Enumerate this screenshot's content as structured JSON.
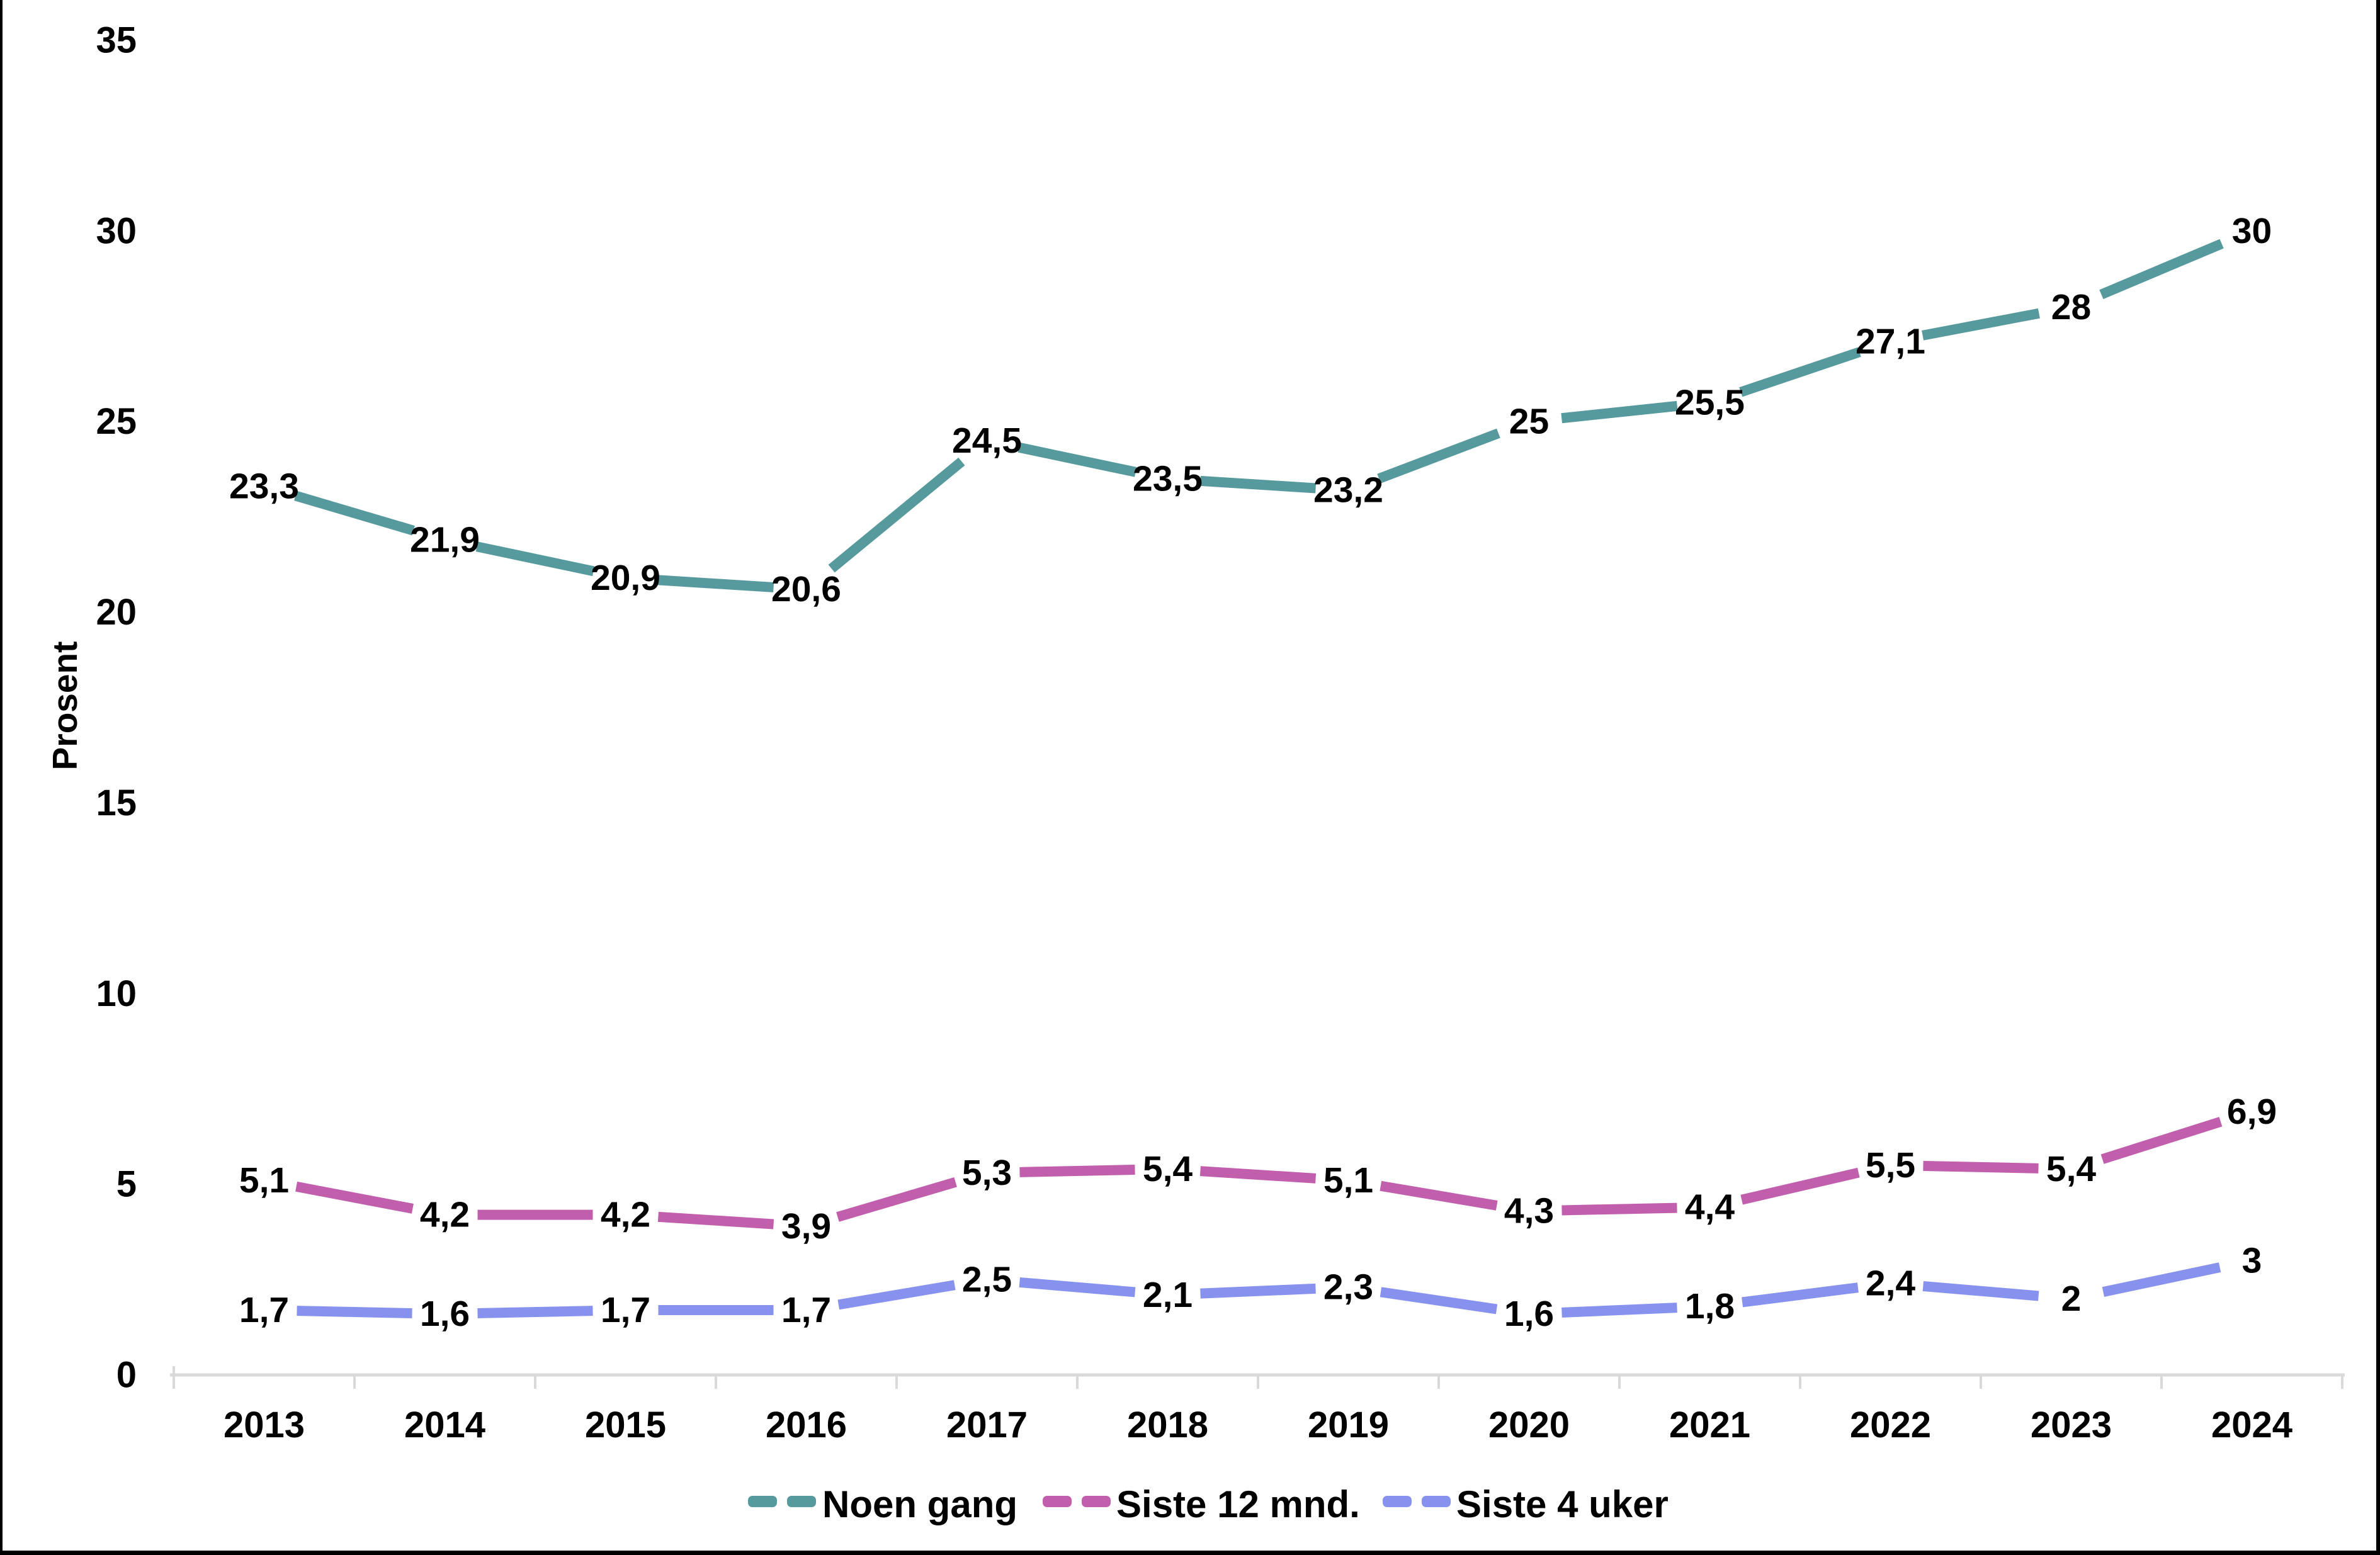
{
  "chart_data": {
    "type": "line",
    "title": "",
    "ylabel": "Prosent",
    "xlabel": "",
    "categories": [
      "2013",
      "2014",
      "2015",
      "2016",
      "2017",
      "2018",
      "2019",
      "2020",
      "2021",
      "2022",
      "2023",
      "2024"
    ],
    "y_ticks": [
      0,
      5,
      10,
      15,
      20,
      25,
      30,
      35
    ],
    "ylim": [
      0,
      35
    ],
    "grid": false,
    "legend_position": "bottom",
    "axis_color": "#D9D9D9",
    "text_color": "#000000",
    "series": [
      {
        "name": "Noen gang",
        "color": "#579A9E",
        "values": [
          23.3,
          21.9,
          20.9,
          20.6,
          24.5,
          23.5,
          23.2,
          25,
          25.5,
          27.1,
          28,
          30
        ],
        "labels": [
          "23,3",
          "21,9",
          "20,9",
          "20,6",
          "24,5",
          "23,5",
          "23,2",
          "25",
          "25,5",
          "27,1",
          "28",
          "30"
        ]
      },
      {
        "name": "Siste 12 mnd.",
        "color": "#C15FAD",
        "values": [
          5.1,
          4.2,
          4.2,
          3.9,
          5.3,
          5.4,
          5.1,
          4.3,
          4.4,
          5.5,
          5.4,
          6.9
        ],
        "labels": [
          "5,1",
          "4,2",
          "4,2",
          "3,9",
          "5,3",
          "5,4",
          "5,1",
          "4,3",
          "4,4",
          "5,5",
          "5,4",
          "6,9"
        ]
      },
      {
        "name": "Siste 4 uker",
        "color": "#8792EE",
        "values": [
          1.7,
          1.6,
          1.7,
          1.7,
          2.5,
          2.1,
          2.3,
          1.6,
          1.8,
          2.4,
          2,
          3
        ],
        "labels": [
          "1,7",
          "1,6",
          "1,7",
          "1,7",
          "2,5",
          "2,1",
          "2,3",
          "1,6",
          "1,8",
          "2,4",
          "2",
          "3"
        ]
      }
    ]
  }
}
